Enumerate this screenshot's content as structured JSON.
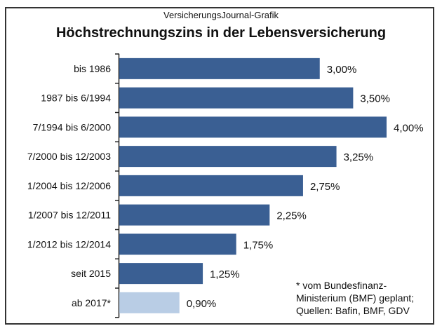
{
  "chart_data": {
    "type": "bar",
    "orientation": "horizontal",
    "subtitle": "VersicherungsJournal-Grafik",
    "title": "Höchstrechnungszins in der Lebensversicherung",
    "categories": [
      "bis 1986",
      "1987 bis 6/1994",
      "7/1994 bis 6/2000",
      "7/2000 bis 12/2003",
      "1/2004 bis 12/2006",
      "1/2007 bis 12/2011",
      "1/2012 bis 12/2014",
      "seit 2015",
      "ab 2017*"
    ],
    "values": [
      3.0,
      3.5,
      4.0,
      3.25,
      2.75,
      2.25,
      1.75,
      1.25,
      0.9
    ],
    "data_labels": [
      "3,00%",
      "3,50%",
      "4,00%",
      "3,25%",
      "2,75%",
      "2,25%",
      "1,75%",
      "1,25%",
      "0,90%"
    ],
    "unit": "%",
    "xlim": [
      0,
      4
    ],
    "grid": false,
    "colors": {
      "bar": "#3a5f93",
      "planned_bar": "#b9cde5"
    },
    "footnote": "* vom Bundesfinanz-\nMinisterium (BMF) geplant;\nQuellen: Bafin, BMF,  GDV"
  }
}
